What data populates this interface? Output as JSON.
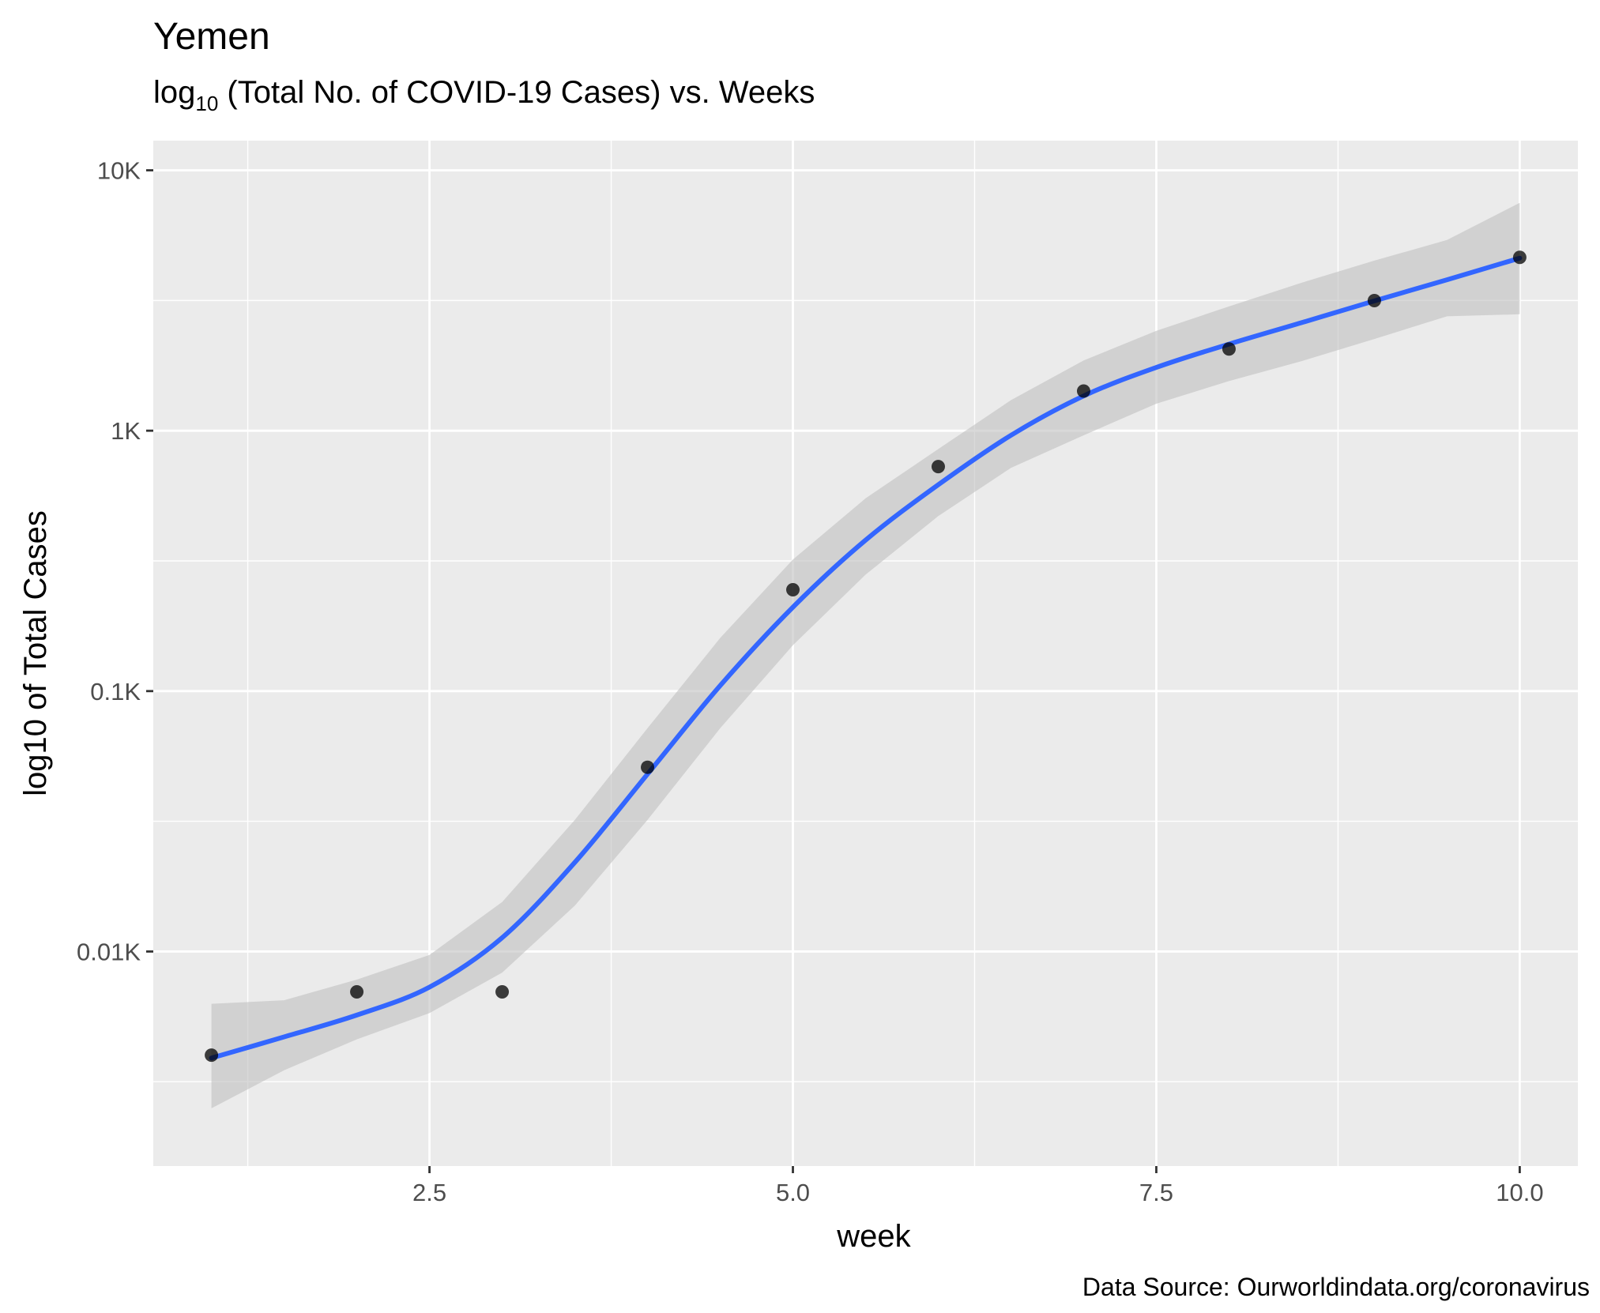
{
  "title": "Yemen",
  "subtitle": {
    "prefix": "log",
    "subscript": "10",
    "rest": " (Total No. of COVID-19 Cases) vs. Weeks"
  },
  "caption": "Data Source: Ourworldindata.org/coronavirus",
  "chart_data": {
    "type": "scatter",
    "title": "Yemen",
    "subtitle": "log10 (Total No. of COVID-19 Cases) vs. Weeks",
    "xlabel": "week",
    "ylabel": "log10 of Total Cases",
    "x_scale": "linear",
    "y_scale": "log10",
    "xlim": [
      0.6,
      10.4
    ],
    "ylim": [
      1.5,
      13000
    ],
    "x_ticks": [
      2.5,
      5.0,
      7.5,
      10.0
    ],
    "x_tick_labels": [
      "2.5",
      "5.0",
      "7.5",
      "10.0"
    ],
    "y_ticks": [
      10,
      100,
      1000,
      10000
    ],
    "y_tick_labels": [
      "0.01K",
      "0.1K",
      "1K",
      "10K"
    ],
    "grid": true,
    "series": [
      {
        "kind": "points",
        "x": [
          1,
          2,
          3,
          4,
          5,
          6,
          7,
          8,
          9,
          10
        ],
        "y": [
          4,
          7,
          7,
          51,
          245,
          728,
          1420,
          2060,
          3160,
          4630
        ]
      },
      {
        "kind": "smooth",
        "method": "loess",
        "x": [
          1,
          1.5,
          2,
          2.5,
          3,
          3.5,
          4,
          4.5,
          5,
          5.5,
          6,
          6.5,
          7,
          7.5,
          8,
          8.5,
          9,
          9.5,
          10
        ],
        "y": [
          3.9,
          4.7,
          5.7,
          7.3,
          11.3,
          22,
          48,
          105,
          210,
          380,
          620,
          960,
          1360,
          1750,
          2150,
          2600,
          3150,
          3800,
          4600
        ],
        "lower": [
          2.5,
          3.5,
          4.6,
          5.8,
          8.3,
          15,
          32,
          72,
          150,
          280,
          470,
          720,
          960,
          1270,
          1550,
          1850,
          2250,
          2750,
          2800
        ],
        "upper": [
          6.3,
          6.5,
          7.8,
          9.7,
          15.5,
          32,
          72,
          160,
          320,
          550,
          850,
          1310,
          1860,
          2420,
          3000,
          3700,
          4500,
          5400,
          7500
        ]
      }
    ],
    "colors": {
      "panel": "#ebebeb",
      "grid": "#ffffff",
      "points": "#000000",
      "line": "#3366ff",
      "ribbon": "#bfbfbf"
    }
  }
}
